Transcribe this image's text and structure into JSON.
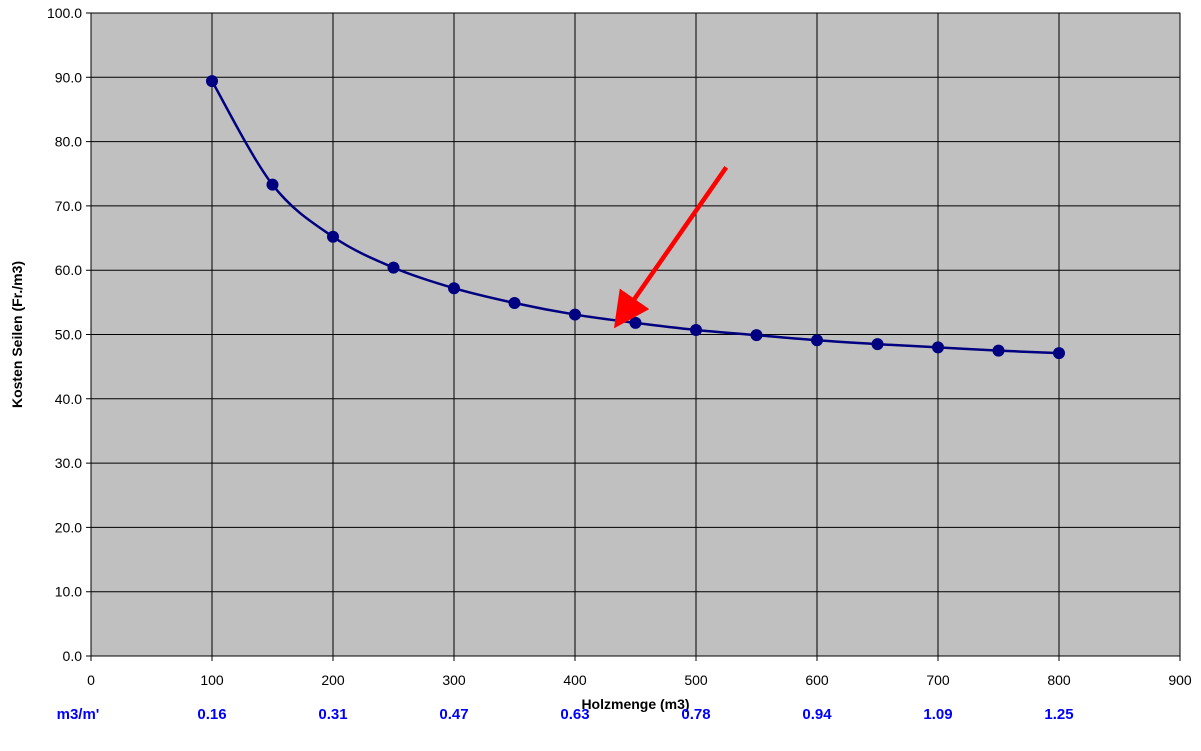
{
  "chart_data": {
    "type": "line",
    "title": "",
    "xlabel": "Holzmenge (m3)",
    "ylabel": "Kosten Seilen (Fr./m3)",
    "xlim": [
      0,
      900
    ],
    "ylim": [
      0,
      100
    ],
    "x_ticks": [
      "0",
      "100",
      "200",
      "300",
      "400",
      "500",
      "600",
      "700",
      "800",
      "900"
    ],
    "y_ticks": [
      "0.0",
      "10.0",
      "20.0",
      "30.0",
      "40.0",
      "50.0",
      "60.0",
      "70.0",
      "80.0",
      "90.0",
      "100.0"
    ],
    "grid": true,
    "legend": "none",
    "series": [
      {
        "x": [
          100,
          150,
          200,
          250,
          300,
          350,
          400,
          450,
          500,
          550,
          600,
          650,
          700,
          750,
          800
        ],
        "y": [
          89.4,
          73.3,
          65.2,
          60.4,
          57.2,
          54.9,
          53.1,
          51.8,
          50.7,
          49.9,
          49.1,
          48.5,
          48.0,
          47.5,
          47.1
        ],
        "color": "#000080"
      }
    ],
    "secondary_axis": {
      "label": "m3/m'",
      "positions": [
        100,
        200,
        300,
        400,
        500,
        600,
        700,
        800
      ],
      "values": [
        "0.16",
        "0.31",
        "0.47",
        "0.63",
        "0.78",
        "0.94",
        "1.09",
        "1.25"
      ],
      "color": "#0000ff"
    },
    "annotation": {
      "type": "arrow",
      "color": "#ff0000",
      "from": [
        525,
        76
      ],
      "to": [
        440,
        53
      ]
    },
    "plot_background": "#c0c0c0"
  }
}
